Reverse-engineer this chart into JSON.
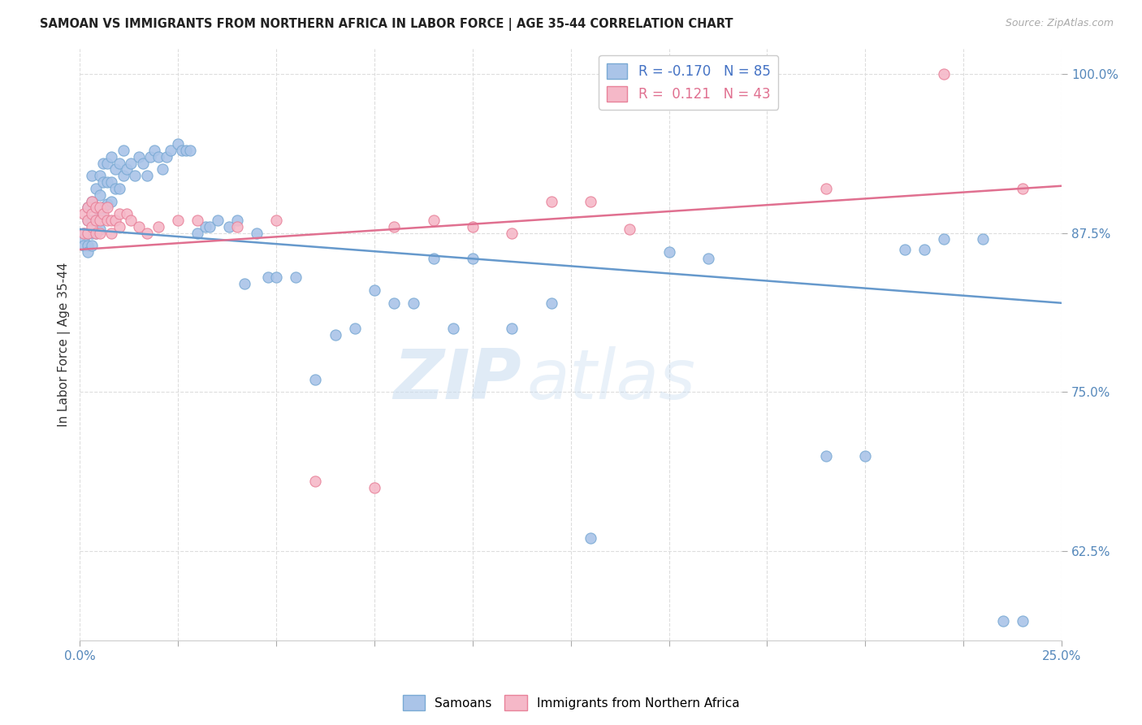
{
  "title": "SAMOAN VS IMMIGRANTS FROM NORTHERN AFRICA IN LABOR FORCE | AGE 35-44 CORRELATION CHART",
  "source": "Source: ZipAtlas.com",
  "ylabel": "In Labor Force | Age 35-44",
  "xlim": [
    0.0,
    0.25
  ],
  "ylim": [
    0.555,
    1.02
  ],
  "xticks": [
    0.0,
    0.025,
    0.05,
    0.075,
    0.1,
    0.125,
    0.15,
    0.175,
    0.2,
    0.225,
    0.25
  ],
  "xticklabels": [
    "0.0%",
    "",
    "",
    "",
    "",
    "",
    "",
    "",
    "",
    "",
    "25.0%"
  ],
  "ytick_positions": [
    0.625,
    0.75,
    0.875,
    1.0
  ],
  "yticklabels": [
    "62.5%",
    "75.0%",
    "87.5%",
    "100.0%"
  ],
  "blue_color": "#aac4e8",
  "pink_color": "#f5b8c8",
  "blue_edge": "#7aaad4",
  "pink_edge": "#e8829a",
  "trend_blue": "#6699cc",
  "trend_pink": "#e07090",
  "R_blue": -0.17,
  "N_blue": 85,
  "R_pink": 0.121,
  "N_pink": 43,
  "blue_x": [
    0.001,
    0.001,
    0.001,
    0.002,
    0.002,
    0.002,
    0.002,
    0.002,
    0.003,
    0.003,
    0.003,
    0.003,
    0.003,
    0.004,
    0.004,
    0.004,
    0.004,
    0.005,
    0.005,
    0.005,
    0.005,
    0.006,
    0.006,
    0.006,
    0.007,
    0.007,
    0.007,
    0.008,
    0.008,
    0.008,
    0.009,
    0.009,
    0.01,
    0.01,
    0.011,
    0.011,
    0.012,
    0.013,
    0.014,
    0.015,
    0.016,
    0.017,
    0.018,
    0.019,
    0.02,
    0.021,
    0.022,
    0.023,
    0.025,
    0.026,
    0.027,
    0.028,
    0.03,
    0.032,
    0.033,
    0.035,
    0.038,
    0.04,
    0.042,
    0.045,
    0.048,
    0.05,
    0.055,
    0.06,
    0.065,
    0.07,
    0.075,
    0.08,
    0.085,
    0.09,
    0.095,
    0.1,
    0.11,
    0.12,
    0.13,
    0.15,
    0.16,
    0.19,
    0.2,
    0.21,
    0.215,
    0.22,
    0.23,
    0.235,
    0.24
  ],
  "blue_y": [
    0.875,
    0.87,
    0.865,
    0.895,
    0.885,
    0.875,
    0.865,
    0.86,
    0.92,
    0.9,
    0.885,
    0.875,
    0.865,
    0.91,
    0.895,
    0.885,
    0.875,
    0.92,
    0.905,
    0.89,
    0.878,
    0.93,
    0.915,
    0.895,
    0.93,
    0.915,
    0.898,
    0.935,
    0.915,
    0.9,
    0.925,
    0.91,
    0.93,
    0.91,
    0.94,
    0.92,
    0.925,
    0.93,
    0.92,
    0.935,
    0.93,
    0.92,
    0.935,
    0.94,
    0.935,
    0.925,
    0.935,
    0.94,
    0.945,
    0.94,
    0.94,
    0.94,
    0.875,
    0.88,
    0.88,
    0.885,
    0.88,
    0.885,
    0.835,
    0.875,
    0.84,
    0.84,
    0.84,
    0.76,
    0.795,
    0.8,
    0.83,
    0.82,
    0.82,
    0.855,
    0.8,
    0.855,
    0.8,
    0.82,
    0.635,
    0.86,
    0.855,
    0.7,
    0.7,
    0.862,
    0.862,
    0.87,
    0.87,
    0.57,
    0.57
  ],
  "pink_x": [
    0.001,
    0.001,
    0.002,
    0.002,
    0.002,
    0.003,
    0.003,
    0.003,
    0.004,
    0.004,
    0.004,
    0.005,
    0.005,
    0.005,
    0.006,
    0.007,
    0.007,
    0.008,
    0.008,
    0.009,
    0.01,
    0.01,
    0.012,
    0.013,
    0.015,
    0.017,
    0.02,
    0.025,
    0.03,
    0.04,
    0.05,
    0.06,
    0.075,
    0.08,
    0.09,
    0.1,
    0.11,
    0.12,
    0.13,
    0.14,
    0.19,
    0.22,
    0.24
  ],
  "pink_y": [
    0.89,
    0.875,
    0.895,
    0.885,
    0.875,
    0.9,
    0.89,
    0.88,
    0.895,
    0.885,
    0.875,
    0.895,
    0.885,
    0.875,
    0.89,
    0.895,
    0.885,
    0.885,
    0.875,
    0.885,
    0.89,
    0.88,
    0.89,
    0.885,
    0.88,
    0.875,
    0.88,
    0.885,
    0.885,
    0.88,
    0.885,
    0.68,
    0.675,
    0.88,
    0.885,
    0.88,
    0.875,
    0.9,
    0.9,
    0.878,
    0.91,
    1.0,
    0.91
  ],
  "watermark_zip": "ZIP",
  "watermark_atlas": "atlas",
  "background_color": "#ffffff",
  "grid_color": "#dddddd",
  "legend_text_blue": "R = -0.170   N = 85",
  "legend_text_pink": "R =  0.121   N = 43"
}
